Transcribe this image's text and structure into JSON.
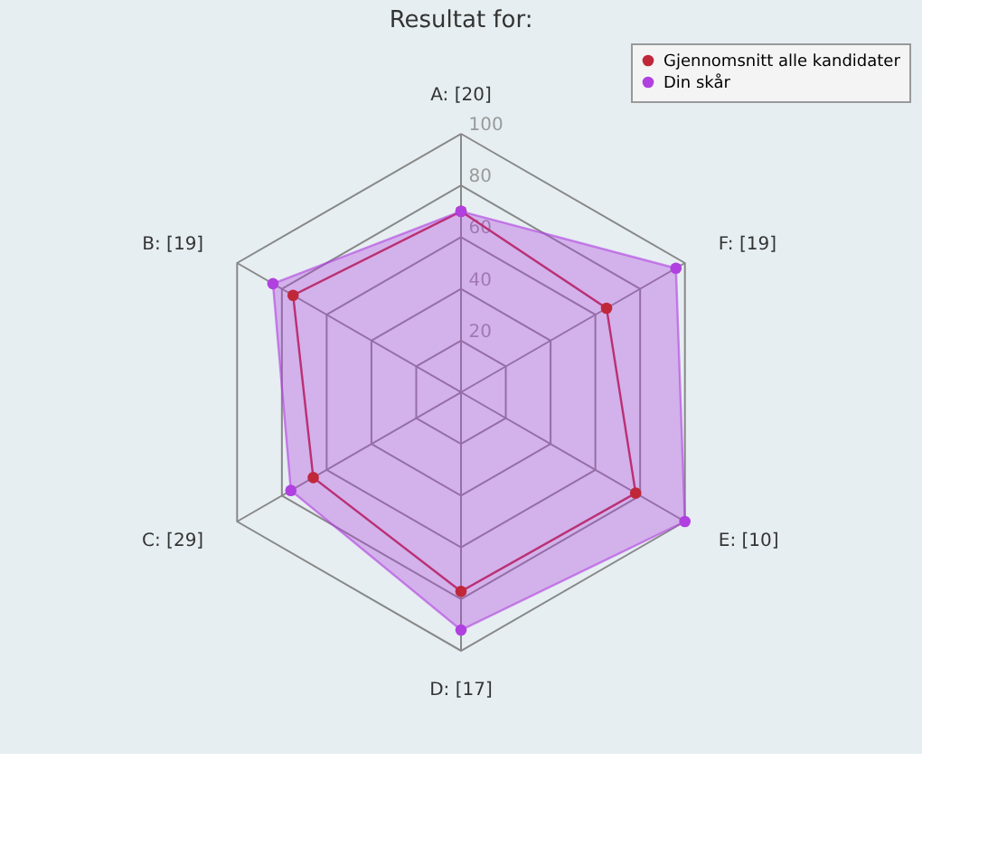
{
  "chart_data": {
    "type": "radar",
    "title": "Resultat for:",
    "categories": [
      "A: [20]",
      "F: [19]",
      "E: [10]",
      "D: [17]",
      "C: [29]",
      "B: [19]"
    ],
    "series": [
      {
        "name": "Gjennomsnitt alle kandidater",
        "color": "#c0283a",
        "values": [
          70,
          65,
          78,
          77,
          66,
          75
        ]
      },
      {
        "name": "Din skår",
        "color": "#b040e0",
        "values": [
          70,
          96,
          100,
          92,
          76,
          84
        ]
      }
    ],
    "ylim": [
      0,
      100
    ],
    "yticks": [
      20,
      40,
      60,
      80,
      100
    ],
    "grid": true,
    "legend": "top right",
    "marker": "circle"
  }
}
